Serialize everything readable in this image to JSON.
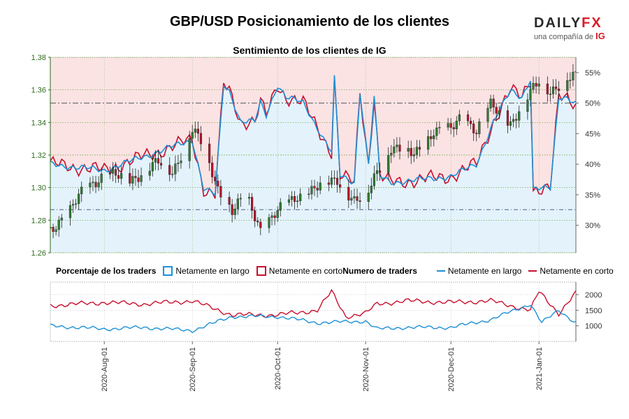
{
  "header": {
    "title": "GBP/USD Posicionamiento de los clientes",
    "subtitle": "Sentimiento de los clientes de IG",
    "logo_text": "DAILYFX",
    "logo_sub": "una compañía de",
    "logo_ig": "IG"
  },
  "legend": {
    "pct_title": "Porcentaje de los traders",
    "pct_long": "Netamente en largo",
    "pct_short": "Netamente en corto",
    "num_title": "Numero de traders",
    "num_long": "Netamente en largo",
    "num_short": "Netamente en corto"
  },
  "colors": {
    "long": "#1e90d6",
    "short": "#c8102e",
    "long_fill": "#e4f3fb",
    "short_fill": "#fbe3e4",
    "grid": "#5a9a2a",
    "up_candle": "#2f7d32",
    "down_candle": "#b7142b"
  },
  "chart_data": [
    {
      "type": "line",
      "title": "Sentimiento de los clientes de IG",
      "price_axis": {
        "ylim": [
          1.26,
          1.38
        ],
        "ticks": [
          "1.26",
          "1.28",
          "1.30",
          "1.32",
          "1.34",
          "1.36",
          "1.38"
        ]
      },
      "pct_axis": {
        "ylim": [
          25.5,
          57.5
        ],
        "ticks": [
          "30%",
          "35%",
          "40%",
          "45%",
          "50%",
          "55%"
        ]
      },
      "reference_lines": {
        "pct": 50,
        "price": 1.2865
      },
      "x_ticks": [
        "2020-Aug-01",
        "2020-Sep-01",
        "2020-Oct-01",
        "2020-Nov-01",
        "2020-Dec-01",
        "2021-Jan-01"
      ],
      "x_start": "2020-Jul-13",
      "x_end": "2021-Jan-14",
      "price_keypoints": [
        [
          "2020-Jul-13",
          1.275
        ],
        [
          "2020-Jul-20",
          1.285
        ],
        [
          "2020-Jul-25",
          1.3
        ],
        [
          "2020-Aug-01",
          1.308
        ],
        [
          "2020-Aug-10",
          1.305
        ],
        [
          "2020-Aug-20",
          1.315
        ],
        [
          "2020-Aug-25",
          1.31
        ],
        [
          "2020-Sep-01",
          1.335
        ],
        [
          "2020-Sep-05",
          1.325
        ],
        [
          "2020-Sep-10",
          1.3
        ],
        [
          "2020-Sep-15",
          1.285
        ],
        [
          "2020-Sep-20",
          1.295
        ],
        [
          "2020-Sep-25",
          1.275
        ],
        [
          "2020-Oct-01",
          1.285
        ],
        [
          "2020-Oct-08",
          1.295
        ],
        [
          "2020-Oct-15",
          1.3
        ],
        [
          "2020-Oct-22",
          1.305
        ],
        [
          "2020-Oct-28",
          1.292
        ],
        [
          "2020-Nov-01",
          1.293
        ],
        [
          "2020-Nov-05",
          1.31
        ],
        [
          "2020-Nov-10",
          1.325
        ],
        [
          "2020-Nov-18",
          1.32
        ],
        [
          "2020-Nov-25",
          1.335
        ],
        [
          "2020-Dec-01",
          1.335
        ],
        [
          "2020-Dec-05",
          1.345
        ],
        [
          "2020-Dec-10",
          1.335
        ],
        [
          "2020-Dec-15",
          1.35
        ],
        [
          "2020-Dec-22",
          1.34
        ],
        [
          "2020-Dec-28",
          1.355
        ],
        [
          "2021-Jan-01",
          1.365
        ],
        [
          "2021-Jan-05",
          1.36
        ],
        [
          "2021-Jan-10",
          1.365
        ],
        [
          "2021-Jan-14",
          1.368
        ]
      ],
      "series": [
        {
          "name": "Netamente en largo",
          "y_axis": "pct",
          "keypoints": [
            [
              "2020-Jul-13",
              40
            ],
            [
              "2020-Aug-01",
              39
            ],
            [
              "2020-Sep-01",
              44
            ],
            [
              "2020-Sep-05",
              36
            ],
            [
              "2020-Sep-09",
              35
            ],
            [
              "2020-Sep-12",
              53
            ],
            [
              "2020-Sep-14",
              52
            ],
            [
              "2020-Sep-18",
              47
            ],
            [
              "2020-Sep-23",
              47
            ],
            [
              "2020-Sep-25",
              50
            ],
            [
              "2020-Sep-27",
              48
            ],
            [
              "2020-Oct-01",
              53
            ],
            [
              "2020-Oct-04",
              51
            ],
            [
              "2020-Oct-10",
              50
            ],
            [
              "2020-Oct-15",
              46
            ],
            [
              "2020-Oct-20",
              42
            ],
            [
              "2020-Oct-21",
              54
            ],
            [
              "2020-Oct-23",
              38
            ],
            [
              "2020-Oct-28",
              37
            ],
            [
              "2020-Oct-30",
              52
            ],
            [
              "2020-Nov-02",
              40
            ],
            [
              "2020-Nov-04",
              51
            ],
            [
              "2020-Nov-06",
              38
            ],
            [
              "2020-Nov-10",
              37
            ],
            [
              "2020-Dec-01",
              38
            ],
            [
              "2020-Dec-10",
              40
            ],
            [
              "2020-Dec-16",
              47
            ],
            [
              "2020-Dec-22",
              52
            ],
            [
              "2020-Dec-26",
              51
            ],
            [
              "2020-Dec-29",
              54
            ],
            [
              "2020-Dec-30",
              36
            ],
            [
              "2021-Jan-05",
              36
            ],
            [
              "2021-Jan-08",
              51
            ],
            [
              "2021-Jan-11",
              51
            ],
            [
              "2021-Jan-14",
              50
            ]
          ]
        },
        {
          "name": "Netamente en corto",
          "y_axis": "pct",
          "keypoints": [
            [
              "2020-Jul-13",
              60
            ],
            [
              "2020-Aug-01",
              61
            ],
            [
              "2020-Sep-01",
              56
            ],
            [
              "2020-Sep-05",
              64
            ],
            [
              "2020-Sep-09",
              65
            ],
            [
              "2020-Sep-12",
              47
            ],
            [
              "2020-Sep-14",
              48
            ],
            [
              "2020-Sep-18",
              53
            ],
            [
              "2020-Sep-23",
              53
            ],
            [
              "2020-Sep-25",
              50
            ],
            [
              "2020-Sep-27",
              52
            ],
            [
              "2020-Oct-01",
              47
            ],
            [
              "2020-Oct-04",
              49
            ],
            [
              "2020-Oct-10",
              50
            ],
            [
              "2020-Oct-15",
              54
            ],
            [
              "2020-Oct-20",
              58
            ],
            [
              "2020-Oct-21",
              46
            ],
            [
              "2020-Oct-23",
              62
            ],
            [
              "2020-Oct-28",
              63
            ],
            [
              "2020-Oct-30",
              48
            ],
            [
              "2020-Nov-02",
              60
            ],
            [
              "2020-Nov-04",
              49
            ],
            [
              "2020-Nov-06",
              62
            ],
            [
              "2020-Nov-10",
              63
            ],
            [
              "2020-Dec-01",
              62
            ],
            [
              "2020-Dec-10",
              60
            ],
            [
              "2020-Dec-16",
              53
            ],
            [
              "2020-Dec-22",
              48
            ],
            [
              "2020-Dec-26",
              49
            ],
            [
              "2020-Dec-29",
              46
            ],
            [
              "2020-Dec-30",
              64
            ],
            [
              "2021-Jan-05",
              64
            ],
            [
              "2021-Jan-08",
              49
            ],
            [
              "2021-Jan-11",
              49
            ],
            [
              "2021-Jan-14",
              50
            ]
          ]
        }
      ]
    },
    {
      "type": "line",
      "title": "Numero de traders",
      "ylim": [
        500,
        2400
      ],
      "y_ticks": [
        "1000",
        "1500",
        "2000"
      ],
      "series": [
        {
          "name": "Netamente en largo",
          "keypoints": [
            [
              "2020-Jul-13",
              1000
            ],
            [
              "2020-Aug-01",
              900
            ],
            [
              "2020-Aug-15",
              950
            ],
            [
              "2020-Sep-01",
              850
            ],
            [
              "2020-Sep-15",
              1300
            ],
            [
              "2020-Oct-01",
              1300
            ],
            [
              "2020-Oct-15",
              1100
            ],
            [
              "2020-Nov-01",
              1150
            ],
            [
              "2020-Nov-05",
              900
            ],
            [
              "2020-Nov-15",
              950
            ],
            [
              "2020-Dec-01",
              950
            ],
            [
              "2020-Dec-15",
              1200
            ],
            [
              "2020-Dec-29",
              1700
            ],
            [
              "2021-Jan-02",
              1100
            ],
            [
              "2021-Jan-08",
              1500
            ],
            [
              "2021-Jan-14",
              1100
            ]
          ]
        },
        {
          "name": "Netamente en corto",
          "keypoints": [
            [
              "2020-Jul-13",
              1650
            ],
            [
              "2020-Aug-01",
              1750
            ],
            [
              "2020-Aug-15",
              1700
            ],
            [
              "2020-Sep-01",
              1800
            ],
            [
              "2020-Sep-15",
              1350
            ],
            [
              "2020-Oct-01",
              1350
            ],
            [
              "2020-Oct-15",
              1500
            ],
            [
              "2020-Oct-20",
              2100
            ],
            [
              "2020-Oct-25",
              1300
            ],
            [
              "2020-Nov-01",
              1400
            ],
            [
              "2020-Nov-05",
              1700
            ],
            [
              "2020-Nov-15",
              1800
            ],
            [
              "2020-Dec-01",
              1750
            ],
            [
              "2020-Dec-15",
              1800
            ],
            [
              "2020-Dec-29",
              1500
            ],
            [
              "2021-Jan-01",
              2100
            ],
            [
              "2021-Jan-08",
              1400
            ],
            [
              "2021-Jan-14",
              2050
            ]
          ]
        }
      ]
    }
  ]
}
